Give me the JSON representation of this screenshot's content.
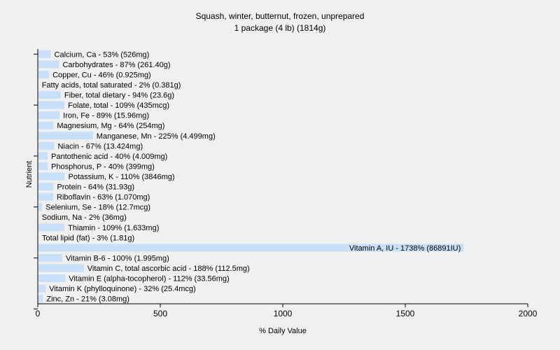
{
  "chart_data": {
    "type": "bar",
    "orientation": "horizontal",
    "title": "Squash, winter, butternut, frozen, unprepared",
    "subtitle": "1 package (4 lb) (1814g)",
    "xlabel": "% Daily Value",
    "ylabel": "Nutrient",
    "xlim": [
      0,
      2000
    ],
    "xticks": [
      0,
      500,
      1000,
      1500,
      2000
    ],
    "grid": false,
    "bar_color": "#c8dff8",
    "categories": [
      "Calcium, Ca - 53% (526mg)",
      "Carbohydrates - 87% (261.40g)",
      "Copper, Cu - 46% (0.925mg)",
      "Fatty acids, total saturated - 2% (0.381g)",
      "Fiber, total dietary - 94% (23.6g)",
      "Folate, total - 109% (435mcg)",
      "Iron, Fe - 89% (15.96mg)",
      "Magnesium, Mg - 64% (254mg)",
      "Manganese, Mn - 225% (4.499mg)",
      "Niacin - 67% (13.424mg)",
      "Pantothenic acid - 40% (4.009mg)",
      "Phosphorus, P - 40% (399mg)",
      "Potassium, K - 110% (3846mg)",
      "Protein - 64% (31.93g)",
      "Riboflavin - 63% (1.070mg)",
      "Selenium, Se - 18% (12.7mcg)",
      "Sodium, Na - 2% (36mg)",
      "Thiamin - 109% (1.633mg)",
      "Total lipid (fat) - 3% (1.81g)",
      "Vitamin A, IU - 1738% (86891IU)",
      "Vitamin B-6 - 100% (1.995mg)",
      "Vitamin C, total ascorbic acid - 188% (112.5mg)",
      "Vitamin E (alpha-tocopherol) - 112% (33.56mg)",
      "Vitamin K (phylloquinone) - 32% (25.4mcg)",
      "Zinc, Zn - 21% (3.08mg)"
    ],
    "values": [
      53,
      87,
      46,
      2,
      94,
      109,
      89,
      64,
      225,
      67,
      40,
      40,
      110,
      64,
      63,
      18,
      2,
      109,
      3,
      1738,
      100,
      188,
      112,
      32,
      21
    ]
  }
}
